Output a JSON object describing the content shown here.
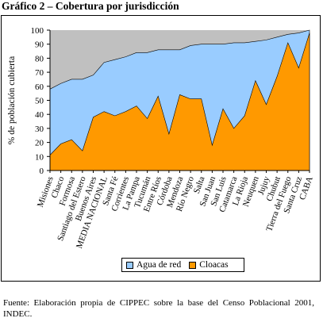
{
  "title": "Gráfico 2 – Cobertura por jurisdicción",
  "source_note": "Fuente: Elaboración propia de CIPPEC sobre la base del Censo Poblacional 2001, INDEC.",
  "colors": {
    "agua": "#99ccff",
    "cloacas": "#ff9900",
    "plot_bg": "#c0c0c0",
    "total_line": "#000000"
  },
  "chart_data": {
    "type": "area",
    "title": "Gráfico 2 – Cobertura por jurisdicción",
    "xlabel": "",
    "ylabel": "% de población cubierta",
    "ylim": [
      0,
      100
    ],
    "yticks": [
      "0",
      "10",
      "20",
      "30",
      "40",
      "50",
      "60",
      "70",
      "80",
      "90",
      "100"
    ],
    "grid": false,
    "legend_position": "bottom",
    "categories": [
      "Misiones",
      "Chaco",
      "Formosa",
      "Santiago del Estero",
      "Buenos Aires",
      "MEDIA NACIONAL",
      "Santa Fé",
      "Corrientes",
      "La Pampa",
      "Tucumán",
      "Entre Ríos",
      "Córdoba",
      "Mendoza",
      "Río Negro",
      "Salta",
      "San Juan",
      "San Luis",
      "Catamarca",
      "La Rioja",
      "Neuquen",
      "Jujuy",
      "Chubut",
      "Tierra del Fuego",
      "Santa Cruz",
      "CABA"
    ],
    "series": [
      {
        "name": "Agua de red",
        "values": [
          58,
          62,
          65,
          65,
          68,
          77,
          79,
          81,
          84,
          84,
          86,
          86,
          86,
          89,
          90,
          90,
          90,
          91,
          91,
          92,
          93,
          95,
          97,
          98,
          100
        ]
      },
      {
        "name": "Cloacas",
        "values": [
          11,
          19,
          22,
          14,
          38,
          42,
          39,
          42,
          46,
          37,
          53,
          26,
          54,
          51,
          51,
          18,
          44,
          30,
          39,
          64,
          47,
          67,
          91,
          73,
          98
        ]
      }
    ]
  }
}
